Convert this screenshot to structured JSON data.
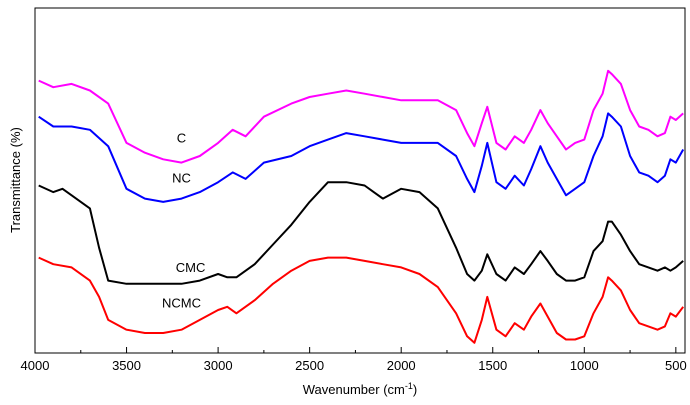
{
  "chart_data": {
    "type": "line",
    "xlabel_main": "Wavenumber (cm",
    "xlabel_sup": "-1",
    "xlabel_end": ")",
    "ylabel": "Transmittance (%)",
    "xlim": [
      4000,
      450
    ],
    "x_ticks": [
      4000,
      3500,
      3000,
      2500,
      2000,
      1500,
      1000,
      500
    ],
    "x_tick_labels": [
      "4000",
      "3500",
      "3000",
      "2500",
      "2000",
      "1500",
      "1000",
      "500"
    ],
    "y_scale_note": "arbitrary units, curves vertically offset",
    "grid": false,
    "series": [
      {
        "name": "C",
        "color": "#ff00ff",
        "points": [
          [
            3980,
            0.81
          ],
          [
            3900,
            0.79
          ],
          [
            3800,
            0.8
          ],
          [
            3700,
            0.78
          ],
          [
            3600,
            0.74
          ],
          [
            3500,
            0.62
          ],
          [
            3400,
            0.59
          ],
          [
            3300,
            0.57
          ],
          [
            3200,
            0.56
          ],
          [
            3100,
            0.58
          ],
          [
            3000,
            0.62
          ],
          [
            2920,
            0.66
          ],
          [
            2850,
            0.64
          ],
          [
            2750,
            0.7
          ],
          [
            2600,
            0.74
          ],
          [
            2500,
            0.76
          ],
          [
            2400,
            0.77
          ],
          [
            2300,
            0.78
          ],
          [
            2200,
            0.77
          ],
          [
            2100,
            0.76
          ],
          [
            2000,
            0.75
          ],
          [
            1900,
            0.75
          ],
          [
            1800,
            0.75
          ],
          [
            1700,
            0.72
          ],
          [
            1640,
            0.65
          ],
          [
            1600,
            0.61
          ],
          [
            1560,
            0.68
          ],
          [
            1530,
            0.73
          ],
          [
            1480,
            0.62
          ],
          [
            1430,
            0.6
          ],
          [
            1380,
            0.64
          ],
          [
            1330,
            0.62
          ],
          [
            1290,
            0.66
          ],
          [
            1240,
            0.72
          ],
          [
            1200,
            0.68
          ],
          [
            1150,
            0.64
          ],
          [
            1100,
            0.6
          ],
          [
            1050,
            0.62
          ],
          [
            1000,
            0.63
          ],
          [
            950,
            0.72
          ],
          [
            900,
            0.77
          ],
          [
            870,
            0.84
          ],
          [
            850,
            0.83
          ],
          [
            800,
            0.8
          ],
          [
            750,
            0.72
          ],
          [
            700,
            0.67
          ],
          [
            650,
            0.66
          ],
          [
            600,
            0.64
          ],
          [
            560,
            0.65
          ],
          [
            530,
            0.7
          ],
          [
            500,
            0.69
          ],
          [
            460,
            0.71
          ]
        ]
      },
      {
        "name": "NC",
        "color": "#0000ff",
        "points": [
          [
            3980,
            0.7
          ],
          [
            3900,
            0.67
          ],
          [
            3800,
            0.67
          ],
          [
            3700,
            0.66
          ],
          [
            3600,
            0.61
          ],
          [
            3500,
            0.48
          ],
          [
            3400,
            0.45
          ],
          [
            3300,
            0.44
          ],
          [
            3200,
            0.45
          ],
          [
            3100,
            0.47
          ],
          [
            3000,
            0.5
          ],
          [
            2920,
            0.53
          ],
          [
            2850,
            0.51
          ],
          [
            2750,
            0.56
          ],
          [
            2600,
            0.58
          ],
          [
            2500,
            0.61
          ],
          [
            2400,
            0.63
          ],
          [
            2300,
            0.65
          ],
          [
            2200,
            0.64
          ],
          [
            2100,
            0.63
          ],
          [
            2000,
            0.62
          ],
          [
            1900,
            0.62
          ],
          [
            1800,
            0.62
          ],
          [
            1700,
            0.58
          ],
          [
            1640,
            0.51
          ],
          [
            1600,
            0.47
          ],
          [
            1560,
            0.55
          ],
          [
            1530,
            0.62
          ],
          [
            1480,
            0.5
          ],
          [
            1430,
            0.48
          ],
          [
            1380,
            0.52
          ],
          [
            1330,
            0.49
          ],
          [
            1290,
            0.54
          ],
          [
            1240,
            0.61
          ],
          [
            1200,
            0.56
          ],
          [
            1150,
            0.51
          ],
          [
            1100,
            0.46
          ],
          [
            1050,
            0.48
          ],
          [
            1000,
            0.5
          ],
          [
            950,
            0.58
          ],
          [
            900,
            0.64
          ],
          [
            870,
            0.71
          ],
          [
            850,
            0.7
          ],
          [
            800,
            0.67
          ],
          [
            750,
            0.58
          ],
          [
            700,
            0.53
          ],
          [
            650,
            0.52
          ],
          [
            600,
            0.5
          ],
          [
            560,
            0.52
          ],
          [
            530,
            0.57
          ],
          [
            500,
            0.56
          ],
          [
            460,
            0.6
          ]
        ]
      },
      {
        "name": "CMC",
        "color": "#000000",
        "points": [
          [
            3980,
            0.49
          ],
          [
            3900,
            0.47
          ],
          [
            3850,
            0.48
          ],
          [
            3800,
            0.46
          ],
          [
            3700,
            0.42
          ],
          [
            3650,
            0.3
          ],
          [
            3600,
            0.2
          ],
          [
            3500,
            0.19
          ],
          [
            3400,
            0.19
          ],
          [
            3300,
            0.19
          ],
          [
            3200,
            0.19
          ],
          [
            3100,
            0.2
          ],
          [
            3000,
            0.22
          ],
          [
            2950,
            0.21
          ],
          [
            2900,
            0.21
          ],
          [
            2800,
            0.25
          ],
          [
            2700,
            0.31
          ],
          [
            2600,
            0.37
          ],
          [
            2500,
            0.44
          ],
          [
            2400,
            0.5
          ],
          [
            2300,
            0.5
          ],
          [
            2200,
            0.49
          ],
          [
            2150,
            0.47
          ],
          [
            2100,
            0.45
          ],
          [
            2000,
            0.48
          ],
          [
            1900,
            0.47
          ],
          [
            1800,
            0.42
          ],
          [
            1700,
            0.3
          ],
          [
            1640,
            0.22
          ],
          [
            1600,
            0.2
          ],
          [
            1560,
            0.23
          ],
          [
            1530,
            0.28
          ],
          [
            1480,
            0.22
          ],
          [
            1430,
            0.2
          ],
          [
            1380,
            0.24
          ],
          [
            1330,
            0.22
          ],
          [
            1290,
            0.25
          ],
          [
            1240,
            0.29
          ],
          [
            1200,
            0.26
          ],
          [
            1150,
            0.22
          ],
          [
            1100,
            0.2
          ],
          [
            1050,
            0.2
          ],
          [
            1000,
            0.21
          ],
          [
            950,
            0.29
          ],
          [
            900,
            0.32
          ],
          [
            870,
            0.38
          ],
          [
            850,
            0.38
          ],
          [
            800,
            0.34
          ],
          [
            750,
            0.29
          ],
          [
            700,
            0.25
          ],
          [
            650,
            0.24
          ],
          [
            600,
            0.23
          ],
          [
            560,
            0.24
          ],
          [
            530,
            0.23
          ],
          [
            500,
            0.24
          ],
          [
            460,
            0.26
          ]
        ]
      },
      {
        "name": "NCMC",
        "color": "#ff0000",
        "points": [
          [
            3980,
            0.27
          ],
          [
            3900,
            0.25
          ],
          [
            3800,
            0.24
          ],
          [
            3700,
            0.2
          ],
          [
            3650,
            0.15
          ],
          [
            3600,
            0.08
          ],
          [
            3500,
            0.05
          ],
          [
            3400,
            0.04
          ],
          [
            3300,
            0.04
          ],
          [
            3200,
            0.05
          ],
          [
            3100,
            0.08
          ],
          [
            3000,
            0.11
          ],
          [
            2950,
            0.12
          ],
          [
            2900,
            0.1
          ],
          [
            2800,
            0.14
          ],
          [
            2700,
            0.19
          ],
          [
            2600,
            0.23
          ],
          [
            2500,
            0.26
          ],
          [
            2400,
            0.27
          ],
          [
            2300,
            0.27
          ],
          [
            2200,
            0.26
          ],
          [
            2100,
            0.25
          ],
          [
            2000,
            0.24
          ],
          [
            1900,
            0.22
          ],
          [
            1800,
            0.18
          ],
          [
            1700,
            0.1
          ],
          [
            1640,
            0.03
          ],
          [
            1600,
            0.01
          ],
          [
            1560,
            0.08
          ],
          [
            1530,
            0.15
          ],
          [
            1480,
            0.05
          ],
          [
            1430,
            0.03
          ],
          [
            1380,
            0.07
          ],
          [
            1330,
            0.05
          ],
          [
            1290,
            0.09
          ],
          [
            1240,
            0.13
          ],
          [
            1200,
            0.09
          ],
          [
            1150,
            0.04
          ],
          [
            1100,
            0.02
          ],
          [
            1050,
            0.02
          ],
          [
            1000,
            0.03
          ],
          [
            950,
            0.1
          ],
          [
            900,
            0.15
          ],
          [
            870,
            0.21
          ],
          [
            850,
            0.2
          ],
          [
            800,
            0.17
          ],
          [
            750,
            0.11
          ],
          [
            700,
            0.07
          ],
          [
            650,
            0.06
          ],
          [
            600,
            0.05
          ],
          [
            560,
            0.06
          ],
          [
            530,
            0.1
          ],
          [
            500,
            0.09
          ],
          [
            460,
            0.12
          ]
        ]
      }
    ]
  }
}
